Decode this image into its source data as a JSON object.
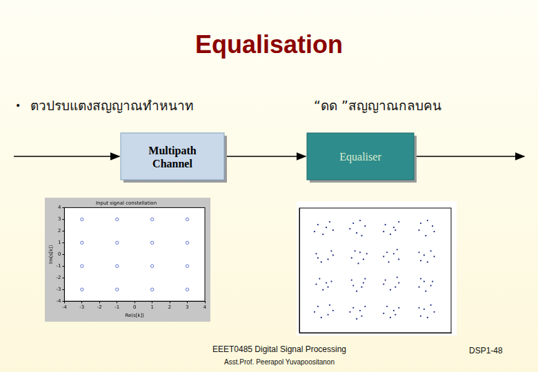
{
  "slide": {
    "title": "Equalisation",
    "bullet": [
      "ตวปรบแตงสญญาณทำหนาท",
      "“ดด ”สญญาณกลบคน"
    ],
    "blocks": [
      "Multipath Channel",
      "Equaliser"
    ],
    "footer": {
      "course": "EEET0485 Digital Signal Processing",
      "author": "Asst.Prof. Peerapol Yuvapoositanon",
      "page": "DSP1-48"
    }
  },
  "chart_data": [
    {
      "type": "scatter",
      "title": "Input signal constellation",
      "x_label": "Re(s[k])",
      "y_label": "Im(s[k])",
      "x": [
        -3,
        -1,
        1,
        3,
        -3,
        -1,
        1,
        3,
        -3,
        -1,
        1,
        3,
        -3,
        -1,
        1,
        3
      ],
      "values": [
        3,
        3,
        3,
        3,
        1,
        1,
        1,
        1,
        -1,
        -1,
        -1,
        -1,
        -3,
        -3,
        -3,
        -3
      ],
      "xlim": [
        -4,
        4
      ],
      "ylim": [
        -4,
        4
      ],
      "xticks": [
        -4,
        -3,
        -2,
        -1,
        0,
        1,
        2,
        3,
        4
      ],
      "yticks": [
        -4,
        -3,
        -2,
        -1,
        0,
        1,
        2,
        3,
        4
      ],
      "grid": false,
      "marker": "circle",
      "color": "#3a55c8"
    },
    {
      "type": "scatter",
      "x": [
        -3.4,
        -2.7,
        -3.1,
        -2.5,
        -3.6,
        -2.9,
        -1.3,
        -0.6,
        -1.1,
        -0.8,
        -1.5,
        -0.9,
        0.6,
        1.4,
        0.9,
        1.2,
        0.5,
        1.1,
        2.7,
        3.4,
        3.0,
        2.6,
        3.5,
        3.1,
        -3.5,
        -2.6,
        -3.2,
        -2.8,
        -3.4,
        -2.5,
        -1.2,
        -0.5,
        -1.0,
        -0.7,
        -1.4,
        -0.9,
        0.7,
        1.3,
        0.8,
        1.4,
        0.5,
        1.1,
        2.6,
        3.3,
        3.1,
        2.7,
        3.5,
        2.9,
        -3.3,
        -2.6,
        -3.1,
        -2.8,
        -3.5,
        -2.9,
        -1.4,
        -0.6,
        -1.1,
        -0.8,
        -1.3,
        -0.7,
        0.6,
        1.3,
        0.9,
        1.2,
        0.5,
        1.4,
        2.7,
        3.4,
        3.0,
        2.6,
        3.3,
        2.9,
        -3.4,
        -2.7,
        -3.2,
        -2.8,
        -3.6,
        -2.5,
        -1.3,
        -0.6,
        -1.1,
        -0.8,
        -1.5,
        -0.9,
        0.7,
        1.4,
        0.9,
        1.2,
        0.5,
        1.1,
        2.6,
        3.3,
        3.1,
        2.7,
        3.5,
        2.9
      ],
      "values": [
        3.3,
        3.5,
        2.6,
        2.9,
        2.8,
        3.1,
        3.4,
        3.2,
        2.7,
        2.5,
        3.0,
        3.6,
        3.3,
        3.5,
        2.6,
        2.9,
        2.8,
        3.1,
        3.4,
        3.2,
        2.5,
        2.9,
        2.8,
        3.6,
        1.2,
        1.4,
        0.6,
        0.8,
        0.9,
        1.1,
        1.4,
        1.2,
        0.5,
        0.8,
        0.9,
        1.3,
        1.3,
        1.5,
        0.6,
        0.8,
        1.0,
        1.2,
        1.3,
        1.4,
        0.6,
        0.7,
        1.0,
        1.1,
        -0.6,
        -0.8,
        -1.4,
        -1.2,
        -1.0,
        -0.9,
        -0.7,
        -0.6,
        -1.5,
        -1.2,
        -1.1,
        -0.9,
        -0.7,
        -0.5,
        -1.4,
        -1.2,
        -1.0,
        -0.9,
        -0.6,
        -0.8,
        -1.5,
        -1.2,
        -1.1,
        -0.8,
        -2.6,
        -2.5,
        -3.4,
        -3.2,
        -3.0,
        -2.9,
        -2.7,
        -2.6,
        -3.5,
        -3.3,
        -3.0,
        -2.9,
        -2.6,
        -2.7,
        -3.4,
        -3.2,
        -3.1,
        -2.9,
        -2.7,
        -2.5,
        -3.4,
        -3.3,
        -3.0,
        -2.8
      ],
      "xlim": [
        -4.5,
        4.5
      ],
      "ylim": [
        -4.5,
        4.5
      ],
      "tick_labels": false,
      "grid": false,
      "marker": "point",
      "color": "#1c2a80"
    }
  ]
}
